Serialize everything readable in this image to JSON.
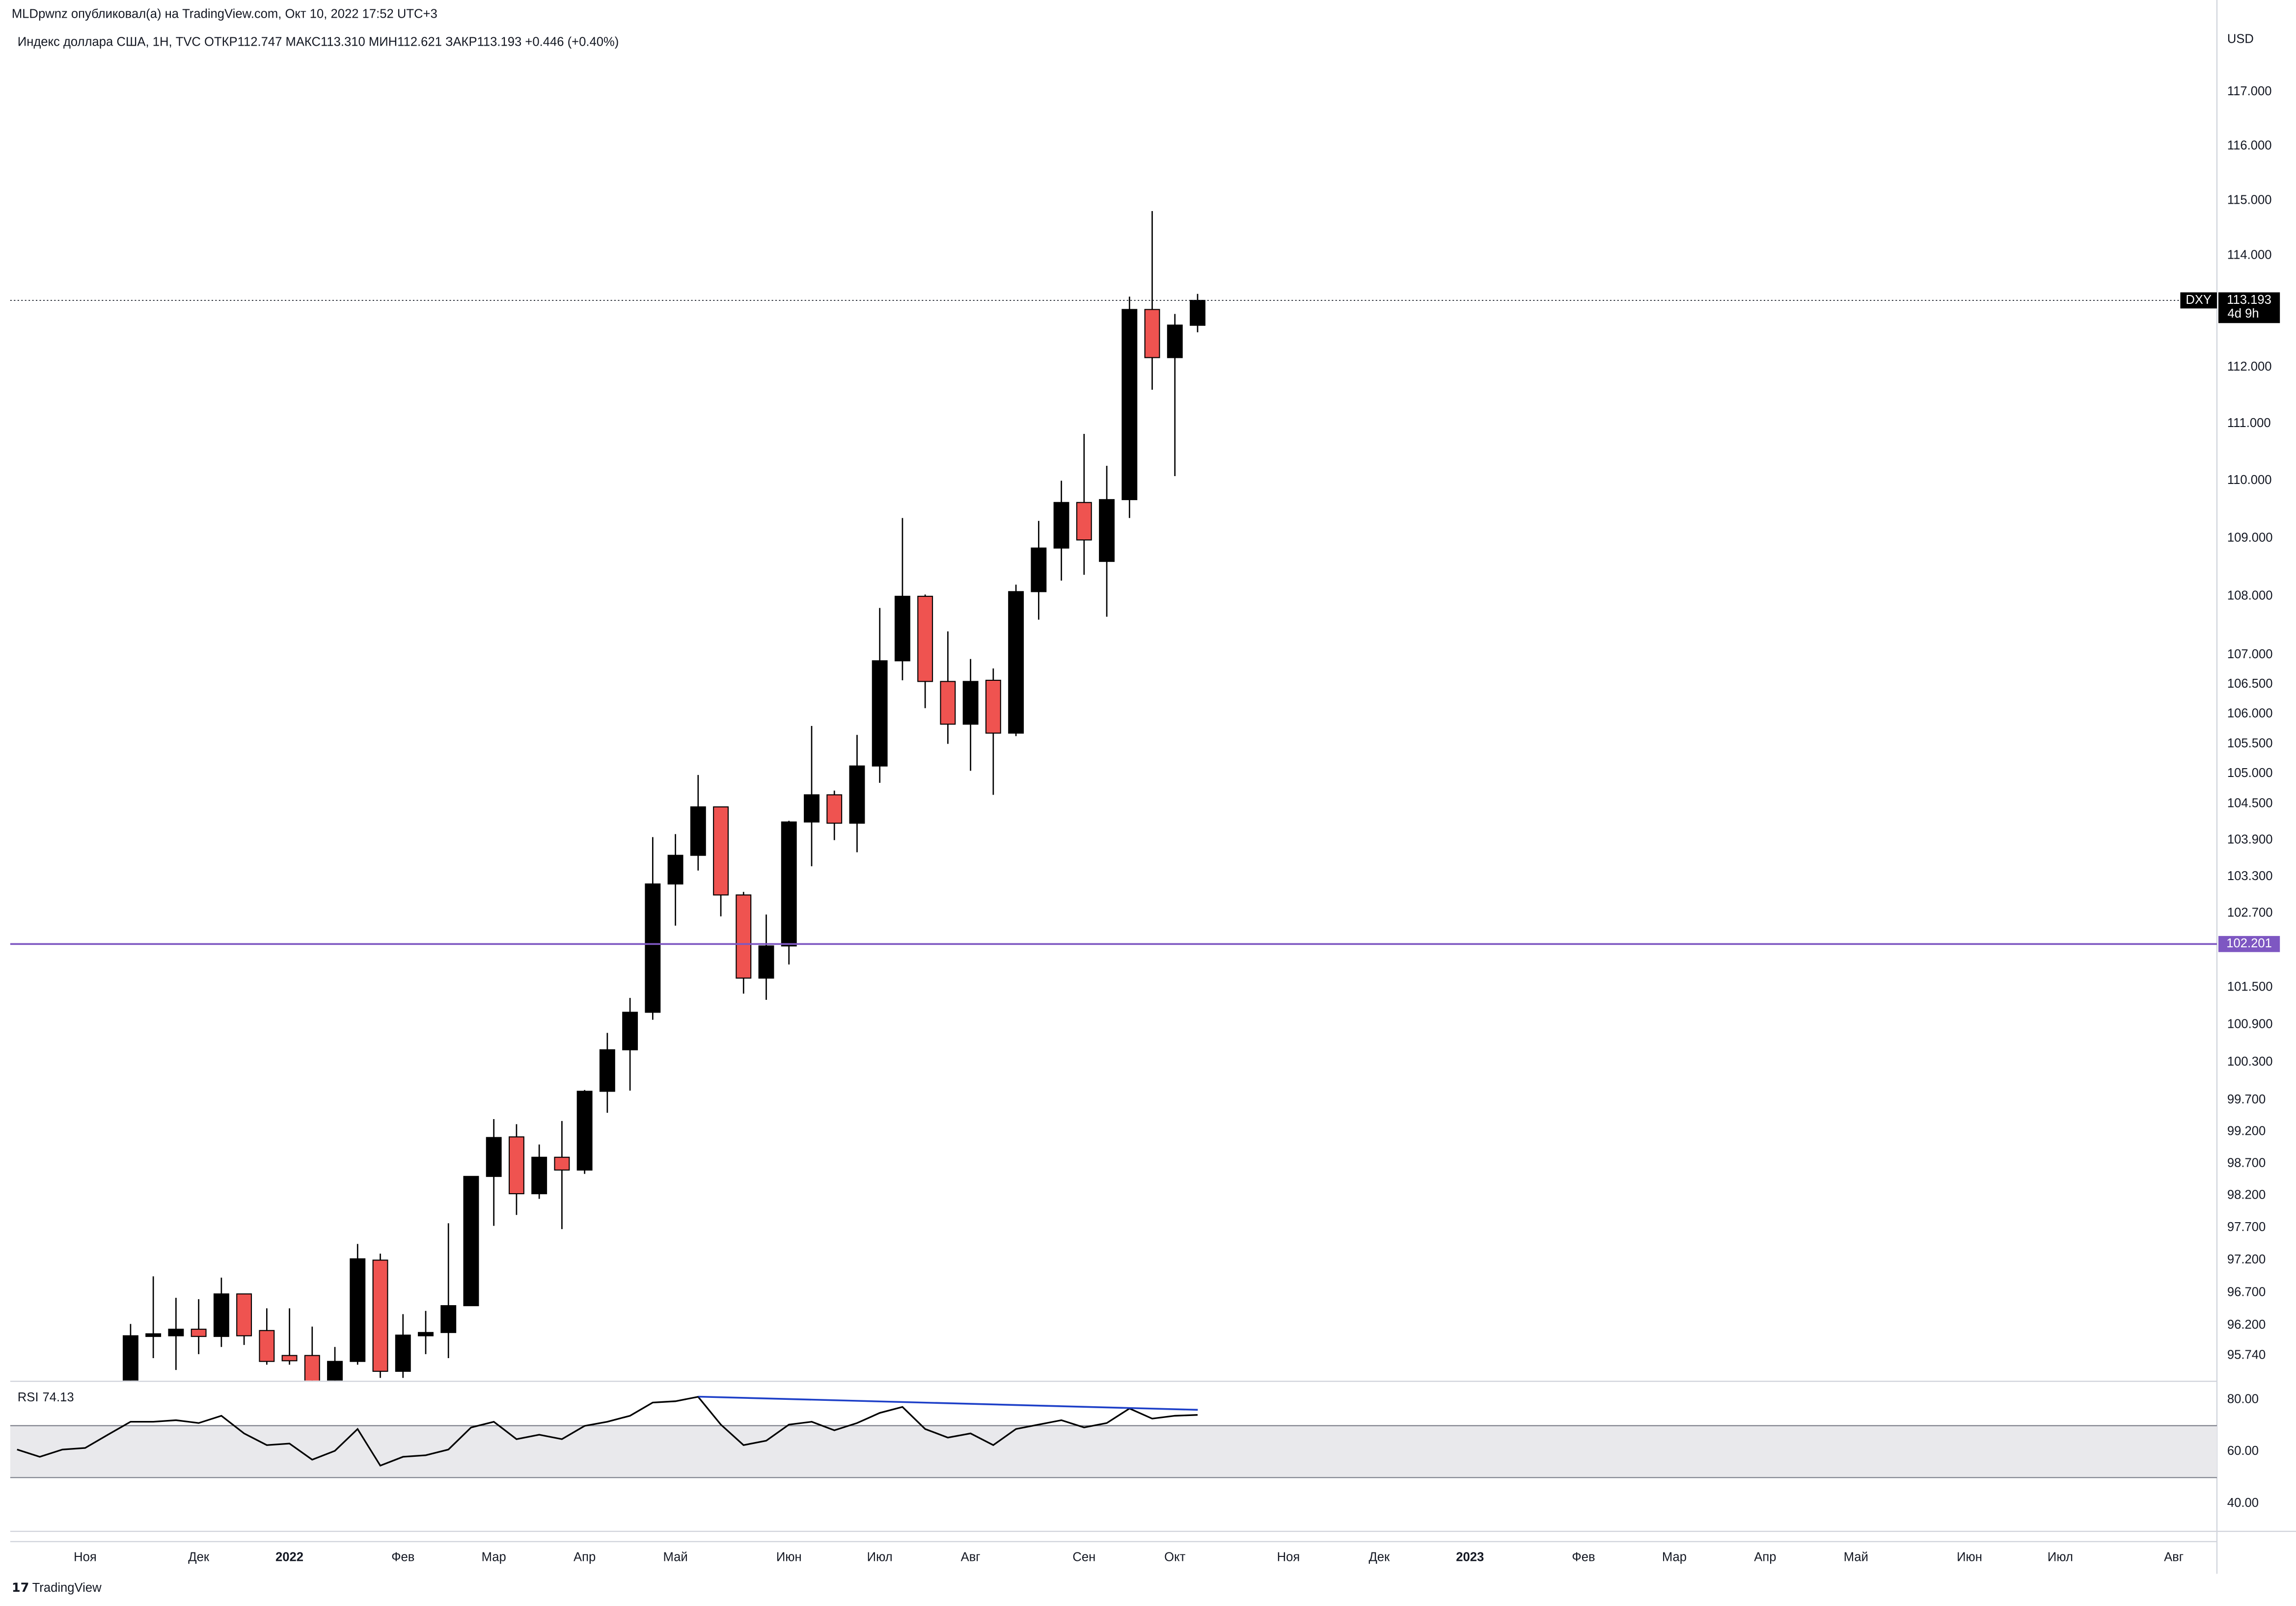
{
  "header": {
    "publisher": "MLDpwnz опубликовал(а) на TradingView.com, Окт 10, 2022 17:52 UTC+3",
    "legend": "Индекс доллара США, 1Н, TVC  ОТКР112.747  МАКС113.310  МИН112.621  ЗАКР113.193  +0.446 (+0.40%)",
    "currency": "USD",
    "logo": "TradingView"
  },
  "chart_data": {
    "type": "candlestick",
    "log_scale": true,
    "up_color": "#000000",
    "down_color": "#ef5350",
    "x": [
      0,
      1,
      2,
      3,
      4,
      5,
      6,
      7,
      8,
      9,
      10,
      11,
      12,
      13,
      14,
      15,
      16,
      17,
      18,
      19,
      20,
      21,
      22,
      23,
      24,
      25,
      26,
      27,
      28,
      29,
      30,
      31,
      32,
      33,
      34,
      35,
      36,
      37,
      38,
      39,
      40,
      41,
      42,
      43,
      44,
      45,
      46,
      47
    ],
    "open": [
      95.3,
      96.03,
      96.04,
      96.14,
      96.03,
      96.68,
      96.12,
      95.74,
      95.74,
      95.3,
      95.65,
      97.2,
      95.5,
      96.04,
      96.09,
      96.5,
      98.5,
      99.12,
      98.23,
      98.8,
      98.6,
      99.84,
      100.5,
      101.1,
      103.18,
      103.65,
      104.45,
      103.0,
      101.65,
      102.17,
      104.2,
      104.65,
      104.18,
      105.13,
      106.9,
      108.0,
      106.55,
      105.83,
      106.57,
      105.68,
      108.08,
      108.83,
      109.62,
      108.6,
      109.67,
      113.03,
      112.17,
      112.747
    ],
    "high": [
      96.22,
      96.95,
      96.62,
      96.6,
      96.93,
      96.68,
      96.46,
      96.46,
      96.18,
      95.87,
      97.45,
      97.3,
      96.37,
      96.42,
      97.77,
      98.5,
      99.4,
      99.32,
      99.0,
      99.37,
      99.86,
      100.77,
      101.33,
      103.95,
      104.0,
      104.98,
      104.45,
      103.05,
      102.68,
      104.22,
      105.8,
      104.72,
      105.65,
      107.8,
      109.35,
      108.03,
      107.4,
      106.93,
      106.77,
      108.2,
      109.3,
      110.0,
      110.82,
      110.26,
      113.26,
      114.81,
      112.95,
      113.31
    ],
    "low": [
      95.0,
      95.7,
      95.52,
      95.76,
      95.87,
      95.9,
      95.6,
      95.6,
      95.2,
      95.2,
      95.6,
      95.4,
      95.4,
      95.76,
      95.7,
      96.5,
      97.73,
      97.9,
      98.15,
      97.68,
      98.54,
      99.5,
      99.85,
      100.98,
      102.5,
      103.4,
      102.65,
      101.4,
      101.3,
      101.87,
      103.47,
      103.9,
      103.7,
      104.85,
      106.57,
      106.1,
      105.5,
      105.05,
      104.65,
      105.63,
      107.6,
      108.27,
      108.37,
      107.65,
      109.35,
      111.6,
      110.08,
      112.621
    ],
    "close": [
      96.04,
      96.07,
      96.14,
      96.03,
      96.68,
      96.04,
      95.65,
      95.66,
      95.3,
      95.65,
      97.22,
      95.5,
      96.05,
      96.09,
      96.5,
      98.5,
      99.11,
      98.23,
      98.8,
      98.6,
      99.84,
      100.5,
      101.1,
      103.18,
      103.65,
      104.45,
      103.0,
      101.65,
      102.17,
      104.2,
      104.65,
      104.18,
      105.13,
      106.9,
      108.0,
      106.55,
      105.83,
      106.55,
      105.68,
      108.08,
      108.83,
      109.62,
      108.97,
      109.67,
      113.03,
      112.17,
      112.75,
      113.193
    ],
    "xlim": [
      -5.3,
      91.9
    ],
    "ylim": [
      95.36,
      118.5
    ],
    "xticks": [
      {
        "value": -2,
        "label": "Ноя"
      },
      {
        "value": 3,
        "label": "Дек"
      },
      {
        "value": 7,
        "label": "2022"
      },
      {
        "value": 12,
        "label": "Фев"
      },
      {
        "value": 16,
        "label": "Мар"
      },
      {
        "value": 20,
        "label": "Апр"
      },
      {
        "value": 24,
        "label": "Май"
      },
      {
        "value": 29,
        "label": "Июн"
      },
      {
        "value": 33,
        "label": "Июл"
      },
      {
        "value": 37,
        "label": "Авг"
      },
      {
        "value": 42,
        "label": "Сен"
      },
      {
        "value": 46,
        "label": "Окт"
      },
      {
        "value": 51,
        "label": "Ноя"
      },
      {
        "value": 55,
        "label": "Дек"
      },
      {
        "value": 59,
        "label": "2023"
      },
      {
        "value": 64,
        "label": "Фев"
      },
      {
        "value": 68,
        "label": "Мар"
      },
      {
        "value": 72,
        "label": "Апр"
      },
      {
        "value": 76,
        "label": "Май"
      },
      {
        "value": 81,
        "label": "Июн"
      },
      {
        "value": 85,
        "label": "Июл"
      },
      {
        "value": 90,
        "label": "Авг"
      }
    ],
    "yticks": [
      {
        "value": 117,
        "label": "117.000"
      },
      {
        "value": 116,
        "label": "116.000"
      },
      {
        "value": 115,
        "label": "115.000"
      },
      {
        "value": 114,
        "label": "114.000"
      },
      {
        "value": 112,
        "label": "112.000"
      },
      {
        "value": 111,
        "label": "111.000"
      },
      {
        "value": 110,
        "label": "110.000"
      },
      {
        "value": 109,
        "label": "109.000"
      },
      {
        "value": 108,
        "label": "108.000"
      },
      {
        "value": 107,
        "label": "107.000"
      },
      {
        "value": 106.5,
        "label": "106.500"
      },
      {
        "value": 106,
        "label": "106.000"
      },
      {
        "value": 105.5,
        "label": "105.500"
      },
      {
        "value": 105,
        "label": "105.000"
      },
      {
        "value": 104.5,
        "label": "104.500"
      },
      {
        "value": 103.9,
        "label": "103.900"
      },
      {
        "value": 103.3,
        "label": "103.300"
      },
      {
        "value": 102.7,
        "label": "102.700"
      },
      {
        "value": 101.5,
        "label": "101.500"
      },
      {
        "value": 100.9,
        "label": "100.900"
      },
      {
        "value": 100.3,
        "label": "100.300"
      },
      {
        "value": 99.7,
        "label": "99.700"
      },
      {
        "value": 99.2,
        "label": "99.200"
      },
      {
        "value": 98.7,
        "label": "98.700"
      },
      {
        "value": 98.2,
        "label": "98.200"
      },
      {
        "value": 97.7,
        "label": "97.700"
      },
      {
        "value": 97.2,
        "label": "97.200"
      },
      {
        "value": 96.7,
        "label": "96.700"
      },
      {
        "value": 96.2,
        "label": "96.200"
      },
      {
        "value": 95.74,
        "label": "95.740"
      }
    ],
    "symbol": "DXY",
    "countdown": "4d 9h",
    "hline": {
      "value": 102.201,
      "color": "#7e57c2"
    }
  },
  "rsi": {
    "name": "RSI",
    "color": "#000000",
    "band_color": "#e9e9ec",
    "x": [
      -5,
      -4,
      -3,
      -2,
      -1,
      0,
      1,
      2,
      3,
      4,
      5,
      6,
      7,
      8,
      9,
      10,
      11,
      12,
      13,
      14,
      15,
      16,
      17,
      18,
      19,
      20,
      21,
      22,
      23,
      24,
      25,
      26,
      27,
      28,
      29,
      30,
      31,
      32,
      33,
      34,
      35,
      36,
      37,
      38,
      39,
      40,
      41,
      42,
      43,
      44,
      45,
      46,
      47
    ],
    "values": [
      60.8,
      58.0,
      60.8,
      61.4,
      66.5,
      71.5,
      71.5,
      72.1,
      71.0,
      73.8,
      67.0,
      62.5,
      63.1,
      56.9,
      60.3,
      68.7,
      54.6,
      58.0,
      58.6,
      60.8,
      69.3,
      71.5,
      64.8,
      66.5,
      64.8,
      69.9,
      71.5,
      73.8,
      78.9,
      79.4,
      81.1,
      70.4,
      62.5,
      64.2,
      70.4,
      71.5,
      68.2,
      71.0,
      74.9,
      77.2,
      68.7,
      65.4,
      67.0,
      62.5,
      68.7,
      70.4,
      72.1,
      69.3,
      71.0,
      76.6,
      72.7,
      73.8,
      74.13
    ],
    "ylim": [
      29.3,
      86.8
    ],
    "yticks": [
      {
        "value": 80,
        "label": "80.00"
      },
      {
        "value": 60,
        "label": "60.00"
      },
      {
        "value": 40,
        "label": "40.00"
      }
    ],
    "bands": [
      70,
      50
    ]
  }
}
